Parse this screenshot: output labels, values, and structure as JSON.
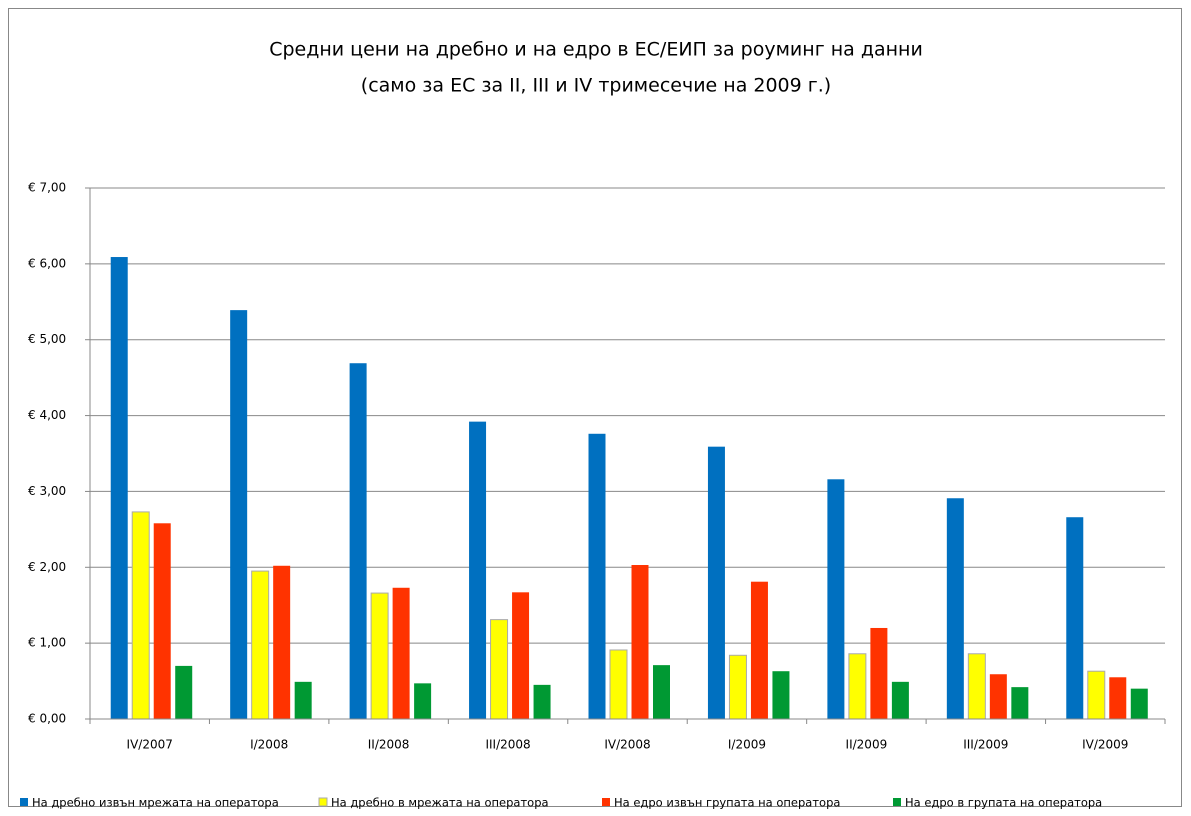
{
  "chart_data": {
    "type": "bar",
    "title": "Средни цени на дребно и на едро в ЕС/ЕИП за роуминг на данни",
    "subtitle": "(само за ЕС за II, III и IV тримесечие на 2009 г.)",
    "categories": [
      "IV/2007",
      "I/2008",
      "II/2008",
      "III/2008",
      "IV/2008",
      "I/2009",
      "II/2009",
      "III/2009",
      "IV/2009"
    ],
    "series": [
      {
        "name": "На дребно извън мрежата на оператора",
        "color": "#0070c0",
        "values": [
          6.09,
          5.39,
          4.69,
          3.92,
          3.76,
          3.59,
          3.16,
          2.91,
          2.66
        ]
      },
      {
        "name": "На дребно в мрежата на оператора",
        "color": "#ffff00",
        "values": [
          2.73,
          1.95,
          1.66,
          1.31,
          0.91,
          0.84,
          0.86,
          0.86,
          0.63
        ]
      },
      {
        "name": "На едро извън групата на оператора",
        "color": "#ff3300",
        "values": [
          2.58,
          2.02,
          1.73,
          1.67,
          2.03,
          1.81,
          1.2,
          0.59,
          0.55
        ]
      },
      {
        "name": "На едро в групата на оператора",
        "color": "#009933",
        "values": [
          0.7,
          0.49,
          0.47,
          0.45,
          0.71,
          0.63,
          0.49,
          0.42,
          0.4
        ]
      }
    ],
    "ylim": [
      0,
      7
    ],
    "yticks": [
      {
        "value": 0,
        "label": "€ 0,00"
      },
      {
        "value": 1,
        "label": "€ 1,00"
      },
      {
        "value": 2,
        "label": "€ 2,00"
      },
      {
        "value": 3,
        "label": "€ 3,00"
      },
      {
        "value": 4,
        "label": "€ 4,00"
      },
      {
        "value": 5,
        "label": "€ 5,00"
      },
      {
        "value": 6,
        "label": "€ 6,00"
      },
      {
        "value": 7,
        "label": "€ 7,00"
      }
    ],
    "grid": true,
    "legend": "bottom"
  }
}
